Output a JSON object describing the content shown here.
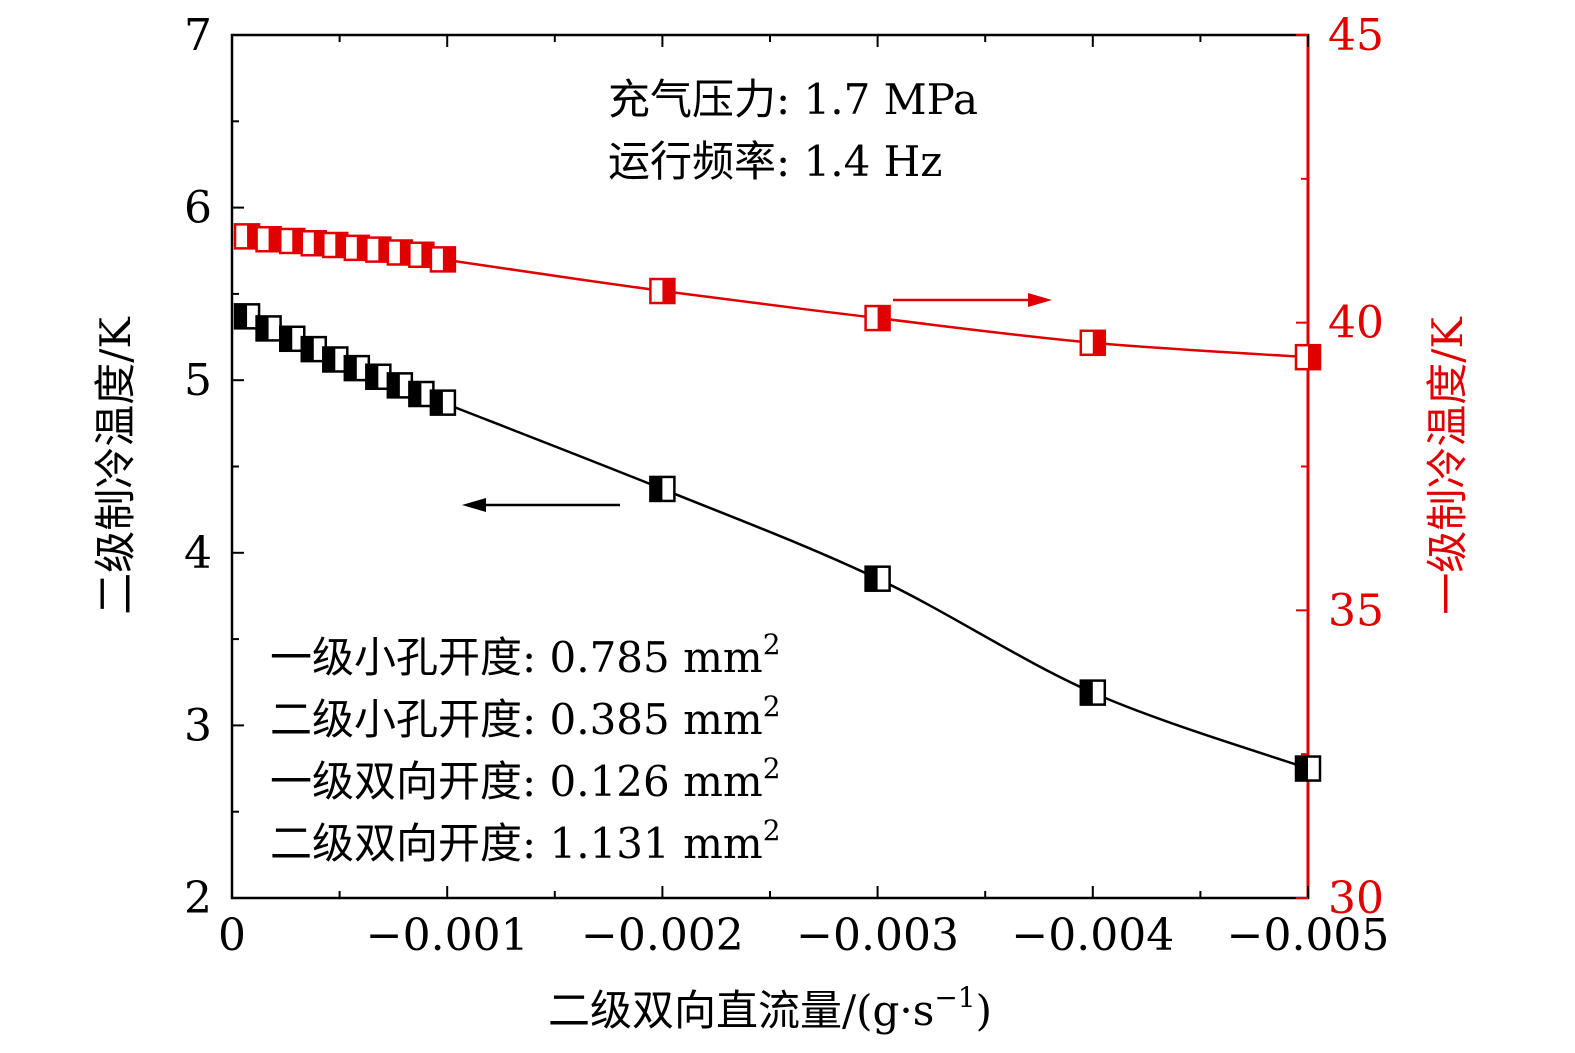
{
  "chart_data": {
    "type": "line",
    "xlabel": "二级双向直流量/(g·s",
    "xlabel_exp": "−1",
    "xlabel_close": ")",
    "ylabel_left": "二级制冷温度/K",
    "ylabel_right": "一级制冷温度/K",
    "xlim": [
      0,
      -0.005
    ],
    "ylim_left": [
      2,
      7
    ],
    "ylim_right": [
      30,
      45
    ],
    "x_ticks": [
      0,
      -0.001,
      -0.002,
      -0.003,
      -0.004,
      -0.005
    ],
    "x_tick_labels": [
      "0",
      "−0.001",
      "−0.002",
      "−0.003",
      "−0.004",
      "−0.005"
    ],
    "y_left_ticks": [
      2,
      3,
      4,
      5,
      6,
      7
    ],
    "y_left_tick_labels": [
      "2",
      "3",
      "4",
      "5",
      "6",
      "7"
    ],
    "y_right_ticks": [
      30,
      35,
      40,
      45
    ],
    "y_right_tick_labels": [
      "30",
      "35",
      "40",
      "45"
    ],
    "colors": {
      "left": "#000000",
      "right": "#e00000"
    },
    "series": [
      {
        "axis": "left",
        "x": [
          -7e-05,
          -0.00017,
          -0.00028,
          -0.00038,
          -0.00048,
          -0.00058,
          -0.00068,
          -0.00078,
          -0.00088,
          -0.00098,
          -0.002,
          -0.003,
          -0.004,
          -0.005
        ],
        "values": [
          5.37,
          5.3,
          5.24,
          5.18,
          5.12,
          5.07,
          5.02,
          4.97,
          4.92,
          4.87,
          4.37,
          3.85,
          3.19,
          2.75
        ]
      },
      {
        "axis": "right",
        "x": [
          -7e-05,
          -0.00017,
          -0.00028,
          -0.00038,
          -0.00048,
          -0.00058,
          -0.00068,
          -0.00078,
          -0.00088,
          -0.00098,
          -0.002,
          -0.003,
          -0.004,
          -0.005
        ],
        "values": [
          41.5,
          41.45,
          41.42,
          41.38,
          41.35,
          41.3,
          41.27,
          41.22,
          41.18,
          41.1,
          40.55,
          40.08,
          39.65,
          39.4
        ]
      }
    ],
    "annotations": {
      "top": [
        "充气压力: 1.7 MPa",
        "运行频率: 1.4 Hz"
      ],
      "bottom": [
        "一级小孔开度: 0.785 mm",
        "二级小孔开度: 0.385 mm",
        "一级双向开度: 0.126 mm",
        "二级双向开度: 1.131 mm"
      ],
      "bottom_exp": "2"
    }
  }
}
